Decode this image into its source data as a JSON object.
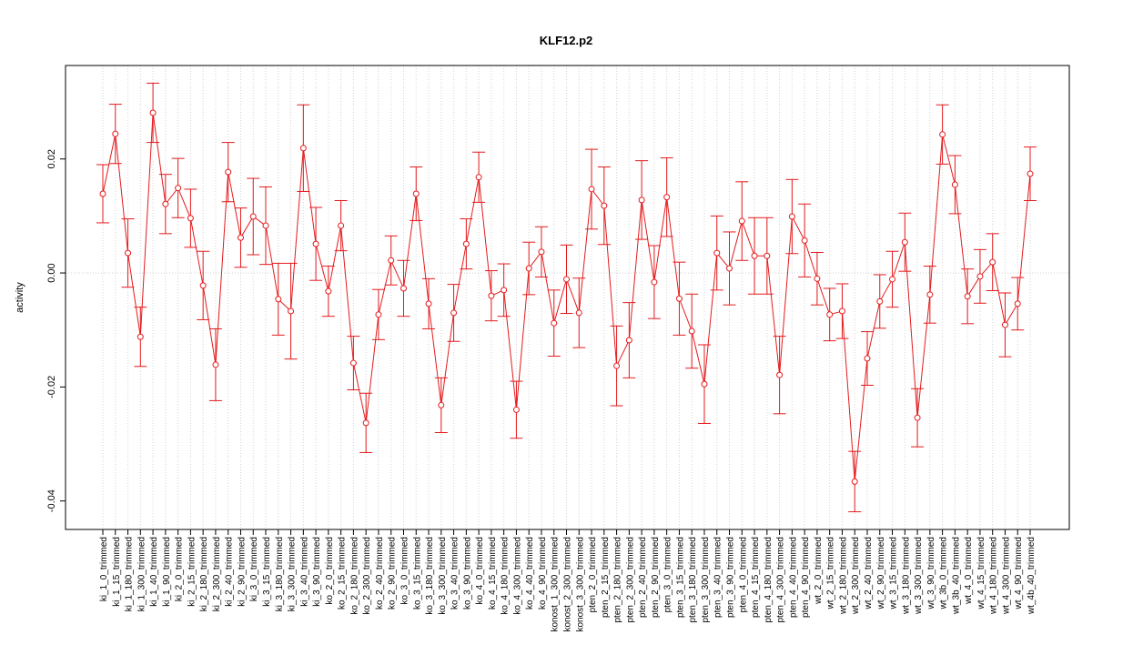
{
  "chart_data": {
    "type": "line",
    "title": "KLF12.p2",
    "ylabel": "activity",
    "categories": [
      "ki_1_0_trimmed",
      "ki_1_15_trimmed",
      "ki_1_180_trimmed",
      "ki_1_300_trimmed",
      "ki_1_40_trimmed",
      "ki_1_90_trimmed",
      "ki_2_0_trimmed",
      "ki_2_15_trimmed",
      "ki_2_180_trimmed",
      "ki_2_300_trimmed",
      "ki_2_40_trimmed",
      "ki_2_90_trimmed",
      "ki_3_0_trimmed",
      "ki_3_15_trimmed",
      "ki_3_180_trimmed",
      "ki_3_300_trimmed",
      "ki_3_40_trimmed",
      "ki_3_90_trimmed",
      "ko_2_0_trimmed",
      "ko_2_15_trimmed",
      "ko_2_180_trimmed",
      "ko_2_300_trimmed",
      "ko_2_40_trimmed",
      "ko_2_90_trimmed",
      "ko_3_0_trimmed",
      "ko_3_15_trimmed",
      "ko_3_180_trimmed",
      "ko_3_300_trimmed",
      "ko_3_40_trimmed",
      "ko_3_90_trimmed",
      "ko_4_0_trimmed",
      "ko_4_15_trimmed",
      "ko_4_180_trimmed",
      "ko_4_300_trimmed",
      "ko_4_40_trimmed",
      "ko_4_90_trimmed",
      "konost_1_300_trimmed",
      "konost_2_300_trimmed",
      "konost_3_300_trimmed",
      "pten_2_0_trimmed",
      "pten_2_15_trimmed",
      "pten_2_180_trimmed",
      "pten_2_300_trimmed",
      "pten_2_40_trimmed",
      "pten_2_90_trimmed",
      "pten_3_0_trimmed",
      "pten_3_15_trimmed",
      "pten_3_180_trimmed",
      "pten_3_300_trimmed",
      "pten_3_40_trimmed",
      "pten_3_90_trimmed",
      "pten_4_0_trimmed",
      "pten_4_15_trimmed",
      "pten_4_180_trimmed",
      "pten_4_300_trimmed",
      "pten_4_40_trimmed",
      "pten_4_90_trimmed",
      "wt_2_0_trimmed",
      "wt_2_15_trimmed",
      "wt_2_180_trimmed",
      "wt_2_300_trimmed",
      "wt_2_40_trimmed",
      "wt_2_90_trimmed",
      "wt_3_15_trimmed",
      "wt_3_180_trimmed",
      "wt_3_300_trimmed",
      "wt_3_90_trimmed",
      "wt_3b_0_trimmed",
      "wt_3b_40_trimmed",
      "wt_4_0_trimmed",
      "wt_4_15_trimmed",
      "wt_4_180_trimmed",
      "wt_4_300_trimmed",
      "wt_4_90_trimmed",
      "wt_4b_40_trimmed"
    ],
    "values": [
      0.0139,
      0.0244,
      0.0035,
      -0.0112,
      0.0281,
      0.0121,
      0.0149,
      0.0096,
      -0.0022,
      -0.0161,
      0.0177,
      0.0062,
      0.0099,
      0.0083,
      -0.0046,
      -0.0067,
      0.0219,
      0.0051,
      -0.0032,
      0.0083,
      -0.0158,
      -0.0263,
      -0.0073,
      0.0022,
      -0.0027,
      0.0139,
      -0.0054,
      -0.0232,
      -0.007,
      0.0051,
      0.0168,
      -0.004,
      -0.003,
      -0.024,
      0.0008,
      0.0037,
      -0.0088,
      -0.0011,
      -0.007,
      0.0147,
      0.0118,
      -0.0163,
      -0.0118,
      0.0128,
      -0.0016,
      0.0133,
      -0.0045,
      -0.0102,
      -0.0195,
      0.0035,
      0.0008,
      0.0091,
      0.003,
      0.003,
      -0.0179,
      0.0099,
      0.0057,
      -0.001,
      -0.0073,
      -0.0067,
      -0.0366,
      -0.015,
      -0.005,
      -0.0011,
      0.0054,
      -0.0254,
      -0.0038,
      0.0243,
      0.0155,
      -0.0041,
      -0.0006,
      0.0019,
      -0.0091,
      -0.0054,
      0.0174
    ],
    "errors": [
      0.0051,
      0.0052,
      0.006,
      0.0052,
      0.0052,
      0.0052,
      0.0052,
      0.0051,
      0.006,
      0.0063,
      0.0052,
      0.0052,
      0.0067,
      0.0068,
      0.0063,
      0.0084,
      0.0076,
      0.0064,
      0.0044,
      0.0044,
      0.0047,
      0.0052,
      0.0044,
      0.0043,
      0.0049,
      0.0047,
      0.0044,
      0.0048,
      0.005,
      0.0044,
      0.0044,
      0.0044,
      0.0046,
      0.005,
      0.0046,
      0.0044,
      0.0058,
      0.006,
      0.0061,
      0.007,
      0.0068,
      0.007,
      0.0066,
      0.0069,
      0.0064,
      0.0069,
      0.0064,
      0.0065,
      0.0069,
      0.0065,
      0.0064,
      0.0069,
      0.0067,
      0.0067,
      0.0068,
      0.0065,
      0.0064,
      0.0046,
      0.0046,
      0.0048,
      0.0053,
      0.0047,
      0.0047,
      0.0049,
      0.0051,
      0.0051,
      0.005,
      0.0052,
      0.0051,
      0.0048,
      0.0047,
      0.005,
      0.0056,
      0.0046,
      0.0047
    ],
    "color": "#e41a1c",
    "ylim": [
      -0.045,
      0.0364
    ],
    "yticks": [
      -0.04,
      -0.02,
      {
        "value": 0,
        "label": "0.00"
      },
      0.02
    ],
    "reference_line": 0,
    "grid": true
  }
}
